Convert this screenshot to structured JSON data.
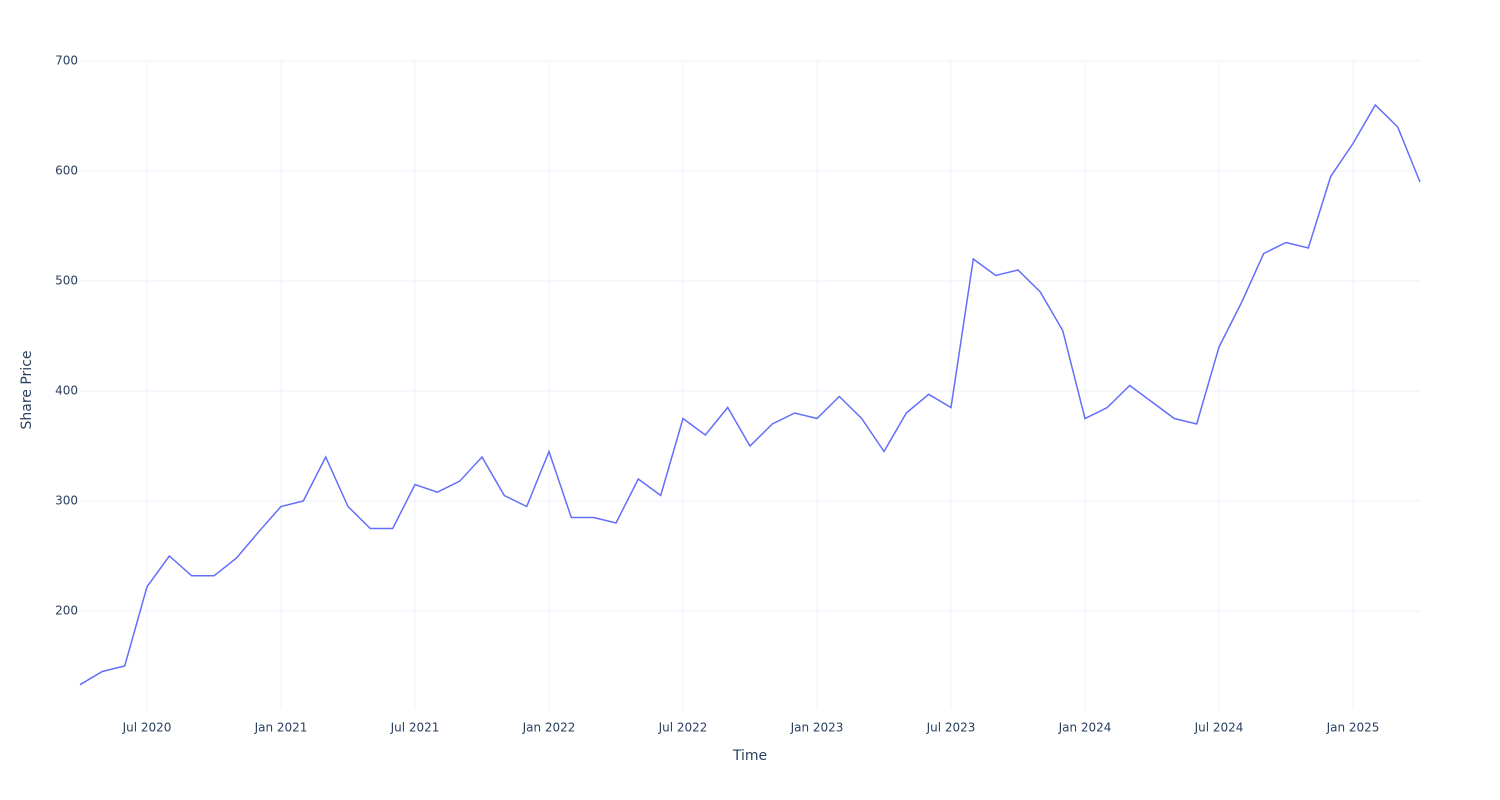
{
  "chart_data": {
    "type": "line",
    "x_title": "Time",
    "y_title": "Share Price",
    "x": [
      "2020-04",
      "2020-05",
      "2020-06",
      "2020-07",
      "2020-08",
      "2020-09",
      "2020-10",
      "2020-11",
      "2020-12",
      "2021-01",
      "2021-02",
      "2021-03",
      "2021-04",
      "2021-05",
      "2021-06",
      "2021-07",
      "2021-08",
      "2021-09",
      "2021-10",
      "2021-11",
      "2021-12",
      "2022-01",
      "2022-02",
      "2022-03",
      "2022-04",
      "2022-05",
      "2022-06",
      "2022-07",
      "2022-08",
      "2022-09",
      "2022-10",
      "2022-11",
      "2022-12",
      "2023-01",
      "2023-02",
      "2023-03",
      "2023-04",
      "2023-05",
      "2023-06",
      "2023-07",
      "2023-08",
      "2023-09",
      "2023-10",
      "2023-11",
      "2023-12",
      "2024-01",
      "2024-02",
      "2024-03",
      "2024-04",
      "2024-05",
      "2024-06",
      "2024-07",
      "2024-08",
      "2024-09",
      "2024-10",
      "2024-11",
      "2024-12",
      "2025-01",
      "2025-02",
      "2025-03",
      "2025-04"
    ],
    "series": [
      {
        "name": "Share Price",
        "color": "#636efa",
        "values": [
          133,
          145,
          150,
          222,
          250,
          232,
          232,
          248,
          272,
          295,
          300,
          340,
          295,
          275,
          275,
          315,
          308,
          318,
          340,
          305,
          295,
          345,
          285,
          285,
          280,
          320,
          305,
          375,
          360,
          385,
          350,
          370,
          380,
          375,
          395,
          375,
          345,
          380,
          397,
          385,
          520,
          505,
          510,
          490,
          455,
          375,
          385,
          405,
          390,
          375,
          370,
          440,
          480,
          525,
          535,
          530,
          595,
          625,
          660,
          640,
          590
        ]
      }
    ],
    "xlim": [
      "2020-04",
      "2025-04"
    ],
    "xticks": [
      {
        "value": "2020-07",
        "label": "Jul 2020"
      },
      {
        "value": "2021-01",
        "label": "Jan 2021"
      },
      {
        "value": "2021-07",
        "label": "Jul 2021"
      },
      {
        "value": "2022-01",
        "label": "Jan 2022"
      },
      {
        "value": "2022-07",
        "label": "Jul 2022"
      },
      {
        "value": "2023-01",
        "label": "Jan 2023"
      },
      {
        "value": "2023-07",
        "label": "Jul 2023"
      },
      {
        "value": "2024-01",
        "label": "Jan 2024"
      },
      {
        "value": "2024-07",
        "label": "Jul 2024"
      },
      {
        "value": "2025-01",
        "label": "Jan 2025"
      }
    ],
    "ylim": [
      110,
      700
    ],
    "yticks": [
      200,
      300,
      400,
      500,
      600,
      700
    ],
    "grid": true
  }
}
